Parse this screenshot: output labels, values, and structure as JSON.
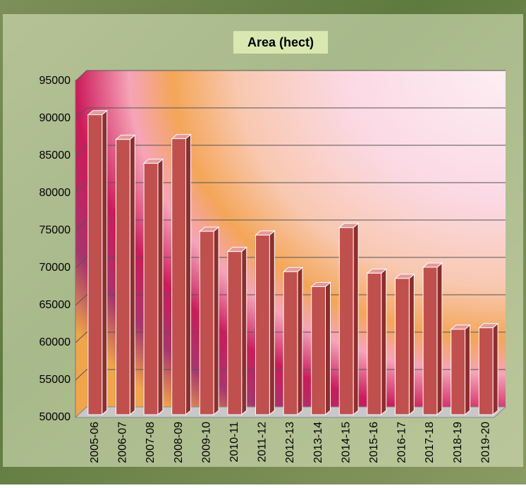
{
  "chart_data": {
    "type": "bar",
    "title": "Area (hect)",
    "categories": [
      "2005-06",
      "2006-07",
      "2007-08",
      "2008-09",
      "2009-10",
      "2010-11",
      "2011-12",
      "2012-13",
      "2013-14",
      "2014-15",
      "2015-16",
      "2016-17",
      "2017-18",
      "2018-19",
      "2019-20"
    ],
    "values": [
      90500,
      87200,
      84000,
      87300,
      74900,
      72200,
      74400,
      69500,
      67500,
      75400,
      69300,
      68600,
      70100,
      61800,
      62000
    ],
    "color": "#c0504d",
    "ylim": [
      50000,
      95000
    ],
    "yticks": [
      50000,
      55000,
      60000,
      65000,
      70000,
      75000,
      80000,
      85000,
      90000,
      95000
    ],
    "grid": true
  }
}
